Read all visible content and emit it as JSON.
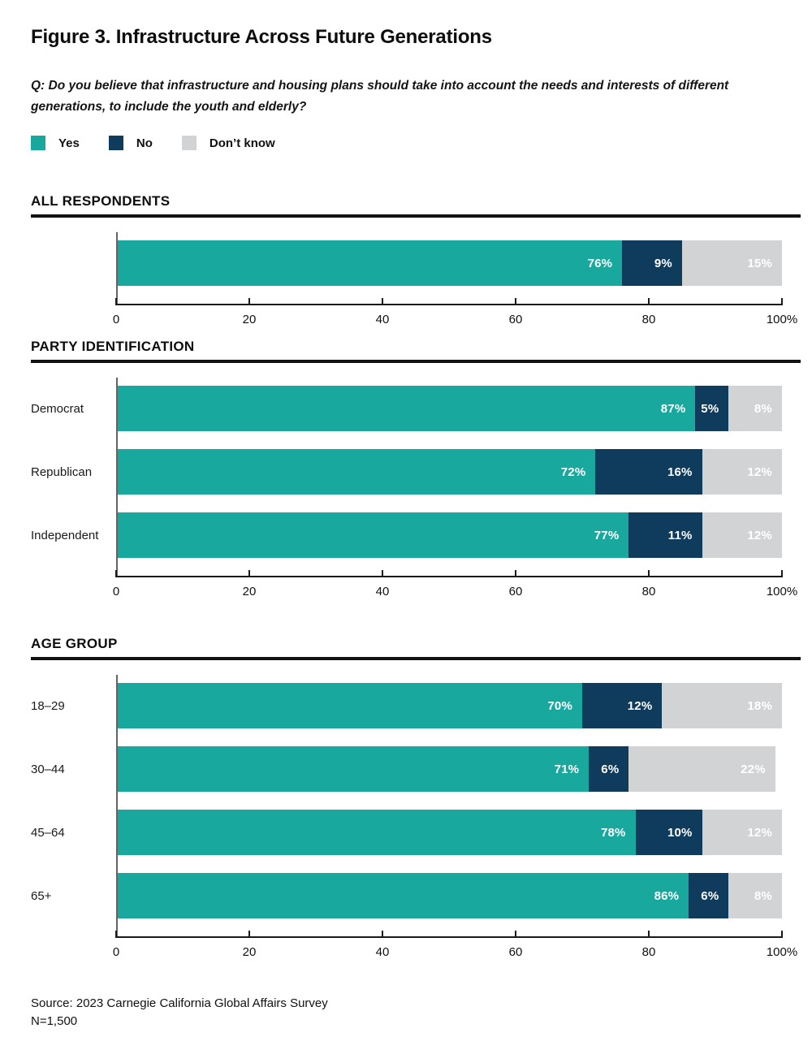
{
  "figure": {
    "title": "Figure 3. Infrastructure Across Future Generations",
    "question_lines": [
      "Q: Do you believe that infrastructure and housing plans should take into account the needs and interests of different",
      "generations, to include the youth and elderly?"
    ],
    "source": "Source: 2023 Carnegie California Global Affairs Survey",
    "sample_size": "N=1,500"
  },
  "colors": {
    "yes": "#19A89D",
    "no": "#0F3C5C",
    "dont_know": "#D2D3D4",
    "rule": "#121212",
    "axis": "#1a1a1a"
  },
  "legend": [
    {
      "label": "Yes",
      "color_key": "yes"
    },
    {
      "label": "No",
      "color_key": "no"
    },
    {
      "label": "Don’t know",
      "color_key": "dont_know"
    }
  ],
  "chart_data": [
    {
      "type": "bar",
      "variant": "stacked-horizontal",
      "section_title": "ALL RESPONDENTS",
      "categories": [
        ""
      ],
      "series": [
        {
          "name": "Yes",
          "color_key": "yes",
          "values": [
            76
          ]
        },
        {
          "name": "No",
          "color_key": "no",
          "values": [
            9
          ]
        },
        {
          "name": "Don’t know",
          "color_key": "dont_know",
          "values": [
            15
          ]
        }
      ],
      "value_suffix": "%",
      "xlim": [
        0,
        100
      ],
      "x_ticks": [
        {
          "pos": 0,
          "label": "0"
        },
        {
          "pos": 20,
          "label": "20"
        },
        {
          "pos": 40,
          "label": "40"
        },
        {
          "pos": 60,
          "label": "60"
        },
        {
          "pos": 80,
          "label": "80"
        },
        {
          "pos": 100,
          "label": "100%"
        }
      ]
    },
    {
      "type": "bar",
      "variant": "stacked-horizontal",
      "section_title": "PARTY IDENTIFICATION",
      "categories": [
        "Democrat",
        "Republican",
        "Independent"
      ],
      "series": [
        {
          "name": "Yes",
          "color_key": "yes",
          "values": [
            87,
            72,
            77
          ]
        },
        {
          "name": "No",
          "color_key": "no",
          "values": [
            5,
            16,
            11
          ]
        },
        {
          "name": "Don’t know",
          "color_key": "dont_know",
          "values": [
            8,
            12,
            12
          ]
        }
      ],
      "value_suffix": "%",
      "xlim": [
        0,
        100
      ],
      "x_ticks": [
        {
          "pos": 0,
          "label": "0"
        },
        {
          "pos": 20,
          "label": "20"
        },
        {
          "pos": 40,
          "label": "40"
        },
        {
          "pos": 60,
          "label": "60"
        },
        {
          "pos": 80,
          "label": "80"
        },
        {
          "pos": 100,
          "label": "100%"
        }
      ]
    },
    {
      "type": "bar",
      "variant": "stacked-horizontal",
      "section_title": "AGE GROUP",
      "categories": [
        "18–29",
        "30–44",
        "45–64",
        "65+"
      ],
      "series": [
        {
          "name": "Yes",
          "color_key": "yes",
          "values": [
            70,
            71,
            78,
            86
          ]
        },
        {
          "name": "No",
          "color_key": "no",
          "values": [
            12,
            6,
            10,
            6
          ]
        },
        {
          "name": "Don’t know",
          "color_key": "dont_know",
          "values": [
            18,
            22,
            12,
            8
          ]
        }
      ],
      "value_suffix": "%",
      "xlim": [
        0,
        100
      ],
      "x_ticks": [
        {
          "pos": 0,
          "label": "0"
        },
        {
          "pos": 20,
          "label": "20"
        },
        {
          "pos": 40,
          "label": "40"
        },
        {
          "pos": 60,
          "label": "60"
        },
        {
          "pos": 80,
          "label": "80"
        },
        {
          "pos": 100,
          "label": "100%"
        }
      ]
    }
  ]
}
